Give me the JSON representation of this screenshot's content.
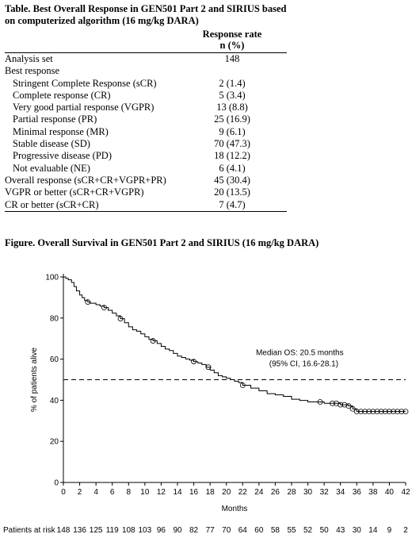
{
  "table": {
    "title": "Table. Best Overall Response in GEN501 Part 2 and SIRIUS based on computerized algorithm (16 mg/kg DARA)",
    "header_line1": "Response rate",
    "header_line2": "n (%)",
    "rows": [
      {
        "label": "Analysis set",
        "value": "148",
        "indent": false
      },
      {
        "label": "Best response",
        "value": "",
        "indent": false
      },
      {
        "label": "Stringent Complete Response (sCR)",
        "value": "2 (1.4)",
        "indent": true
      },
      {
        "label": "Complete response (CR)",
        "value": "5 (3.4)",
        "indent": true
      },
      {
        "label": "Very good partial response (VGPR)",
        "value": "13 (8.8)",
        "indent": true
      },
      {
        "label": "Partial response (PR)",
        "value": "25 (16.9)",
        "indent": true
      },
      {
        "label": "Minimal response (MR)",
        "value": "9 (6.1)",
        "indent": true
      },
      {
        "label": "Stable disease (SD)",
        "value": "70 (47.3)",
        "indent": true
      },
      {
        "label": "Progressive disease (PD)",
        "value": "18 (12.2)",
        "indent": true
      },
      {
        "label": "Not evaluable (NE)",
        "value": "6 (4.1)",
        "indent": true
      },
      {
        "label": "Overall response (sCR+CR+VGPR+PR)",
        "value": "45 (30.4)",
        "indent": false
      },
      {
        "label": "VGPR or better (sCR+CR+VGPR)",
        "value": "20 (13.5)",
        "indent": false
      },
      {
        "label": "CR or better (sCR+CR)",
        "value": "7 (4.7)",
        "indent": false
      }
    ]
  },
  "figure": {
    "title": "Figure. Overall Survival in GEN501 Part 2 and SIRIUS (16 mg/kg DARA)"
  },
  "chart_data": {
    "type": "line",
    "xlabel": "Months",
    "ylabel": "% of patients alive",
    "xlim": [
      0,
      42
    ],
    "ylim": [
      0,
      100
    ],
    "x_ticks": [
      0,
      2,
      4,
      6,
      8,
      10,
      12,
      14,
      16,
      18,
      20,
      22,
      24,
      26,
      28,
      30,
      32,
      34,
      36,
      38,
      40,
      42
    ],
    "y_ticks": [
      0,
      20,
      40,
      60,
      80,
      100
    ],
    "median_line_y": 50,
    "annotation_line1": "Median OS: 20.5 months",
    "annotation_line2": "(95% CI, 16.6-28.1)",
    "at_risk_label": "Patients at risk",
    "at_risk": [
      "148",
      "136",
      "125",
      "119",
      "108",
      "103",
      "96",
      "90",
      "82",
      "77",
      "70",
      "64",
      "60",
      "58",
      "55",
      "52",
      "50",
      "43",
      "30",
      "14",
      "9",
      "2"
    ],
    "curve_x": [
      0,
      0.3,
      0.6,
      1.0,
      1.3,
      1.6,
      2.0,
      2.3,
      2.6,
      3.0,
      3.3,
      4.0,
      4.5,
      5.0,
      5.5,
      6.0,
      6.5,
      7.0,
      7.5,
      8.0,
      8.5,
      9.0,
      9.5,
      10.0,
      10.5,
      11.0,
      11.5,
      12.0,
      12.5,
      13.0,
      13.5,
      14.0,
      14.5,
      15.0,
      15.5,
      16.0,
      16.5,
      17.0,
      17.5,
      18.0,
      18.5,
      19.0,
      19.5,
      20.0,
      20.5,
      21.0,
      21.5,
      22.0,
      23.0,
      24.0,
      25.0,
      26.0,
      27.0,
      28.0,
      29.0,
      30.0,
      31.0,
      32.0,
      33.0,
      34.0,
      35.0,
      35.5,
      36.0,
      36.5,
      37.0,
      38.0,
      39.0,
      40.0,
      41.0,
      42.0
    ],
    "curve_y": [
      100,
      99.3,
      98.6,
      97.3,
      95.3,
      93.2,
      91.2,
      89.9,
      88.5,
      87.8,
      87.2,
      86.5,
      85.8,
      85.1,
      83.8,
      82.4,
      81.1,
      79.7,
      77.7,
      75.7,
      74.3,
      73.6,
      72.3,
      70.9,
      69.6,
      68.9,
      67.6,
      66.2,
      64.9,
      64.2,
      62.8,
      61.5,
      60.8,
      60.1,
      59.5,
      58.8,
      58.1,
      57.4,
      56.1,
      54.7,
      53.4,
      52.0,
      51.4,
      50.7,
      50.0,
      49.3,
      48.6,
      47.3,
      45.9,
      44.6,
      43.2,
      42.6,
      41.9,
      40.5,
      39.9,
      39.2,
      39.2,
      38.5,
      38.5,
      37.8,
      37.2,
      35.8,
      34.5,
      34.5,
      34.5,
      34.5,
      34.5,
      34.5,
      34.5,
      34.5
    ],
    "censor_x": [
      3,
      5,
      7,
      11,
      16,
      17.8,
      22,
      31.5,
      33,
      33.5,
      34,
      34.5,
      35,
      35.5,
      36,
      36.5,
      37,
      37.5,
      38,
      38.5,
      39,
      39.5,
      40,
      40.5,
      41,
      41.5,
      42
    ]
  }
}
